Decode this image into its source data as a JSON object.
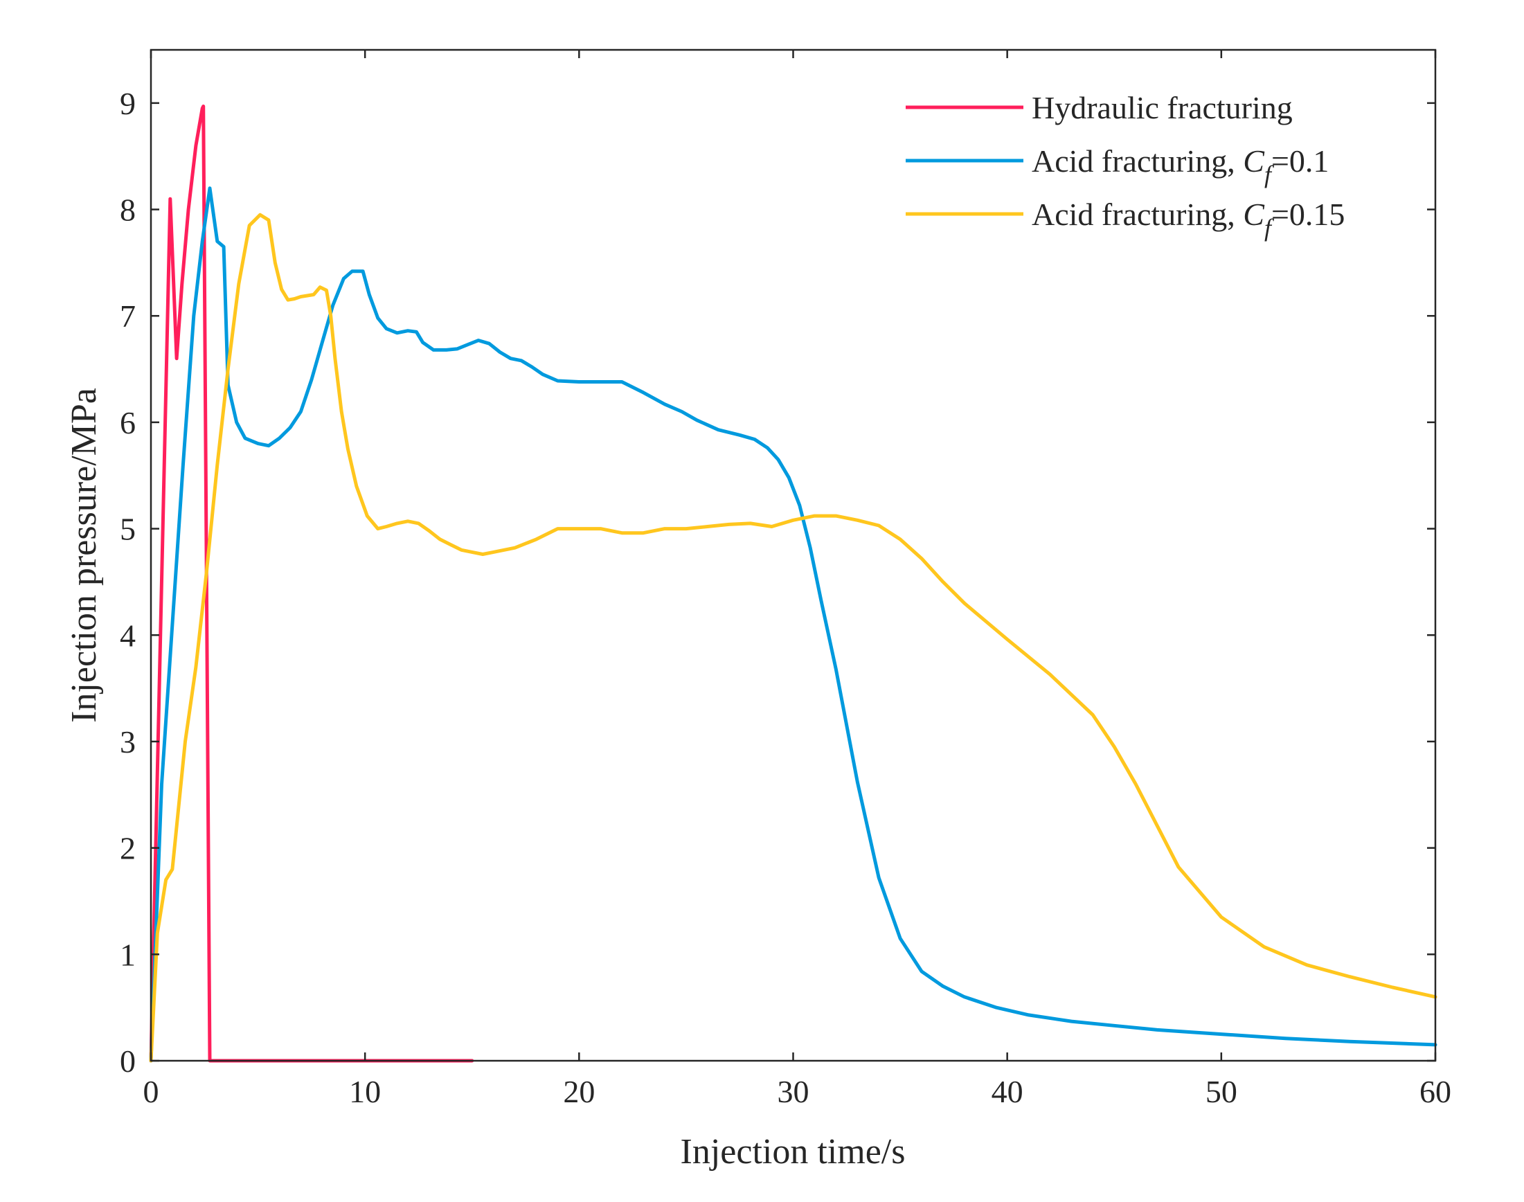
{
  "chart_data": {
    "type": "line",
    "title": "",
    "xlabel": "Injection time/s",
    "ylabel": "Injection pressure/MPa",
    "xlim": [
      0,
      60
    ],
    "ylim": [
      0,
      9.5
    ],
    "xticks": [
      0,
      10,
      20,
      30,
      40,
      50,
      60
    ],
    "yticks": [
      0,
      1,
      2,
      3,
      4,
      5,
      6,
      7,
      8,
      9
    ],
    "grid": false,
    "legend_position": "top-right",
    "series": [
      {
        "name": "Hydraulic fracturing",
        "legend": {
          "prefix": "Hydraulic fracturing",
          "italic": "",
          "sub": "",
          "suffix": ""
        },
        "color": "#ff1f5b",
        "x": [
          0,
          0.9,
          1.2,
          1.45,
          1.75,
          2.1,
          2.4,
          2.45,
          2.75,
          3.0,
          5.0,
          10.0,
          15.0
        ],
        "y": [
          0,
          8.1,
          6.6,
          7.3,
          8.0,
          8.6,
          8.95,
          8.97,
          0,
          0,
          0,
          0,
          0
        ]
      },
      {
        "name": "Acid fracturing, Cf=0.1",
        "legend": {
          "prefix": "Acid fracturing, ",
          "italic": "C",
          "sub": "f",
          "suffix": "=0.1"
        },
        "color": "#009ade",
        "x": [
          0,
          0.5,
          1,
          1.5,
          2,
          2.4,
          2.75,
          3.1,
          3.4,
          3.6,
          4.0,
          4.4,
          5.0,
          5.5,
          6.0,
          6.5,
          7.0,
          7.5,
          8.0,
          8.5,
          9.0,
          9.4,
          9.9,
          10.2,
          10.6,
          11.0,
          11.5,
          12.0,
          12.4,
          12.7,
          13.2,
          13.8,
          14.3,
          14.8,
          15.3,
          15.8,
          16.3,
          16.8,
          17.3,
          17.8,
          18.3,
          19.0,
          20.0,
          21.0,
          22.0,
          23.0,
          24.0,
          24.8,
          25.5,
          26.5,
          27.5,
          28.2,
          28.8,
          29.3,
          29.8,
          30.3,
          30.8,
          31.3,
          32.0,
          33.0,
          34.0,
          35.0,
          36.0,
          37.0,
          38.0,
          39.5,
          41.0,
          43.0,
          45.0,
          47.0,
          50.0,
          53.0,
          56.0,
          60.0
        ],
        "y": [
          0,
          2.6,
          4.1,
          5.6,
          7.0,
          7.7,
          8.2,
          7.7,
          7.65,
          6.35,
          6.0,
          5.85,
          5.8,
          5.78,
          5.85,
          5.95,
          6.1,
          6.4,
          6.75,
          7.1,
          7.35,
          7.42,
          7.42,
          7.2,
          6.98,
          6.88,
          6.84,
          6.86,
          6.85,
          6.75,
          6.68,
          6.68,
          6.69,
          6.73,
          6.77,
          6.74,
          6.66,
          6.6,
          6.58,
          6.52,
          6.45,
          6.39,
          6.38,
          6.38,
          6.38,
          6.28,
          6.17,
          6.1,
          6.02,
          5.93,
          5.88,
          5.84,
          5.76,
          5.65,
          5.48,
          5.22,
          4.82,
          4.33,
          3.68,
          2.62,
          1.72,
          1.15,
          0.84,
          0.7,
          0.6,
          0.5,
          0.43,
          0.37,
          0.33,
          0.29,
          0.25,
          0.21,
          0.18,
          0.15
        ]
      },
      {
        "name": "Acid fracturing, Cf=0.15",
        "legend": {
          "prefix": "Acid fracturing, ",
          "italic": "C",
          "sub": "f",
          "suffix": "=0.15"
        },
        "color": "#ffc61e",
        "x": [
          0,
          0.3,
          0.7,
          1.0,
          1.6,
          2.1,
          2.6,
          3.1,
          3.6,
          4.1,
          4.6,
          5.1,
          5.5,
          5.8,
          6.1,
          6.4,
          6.7,
          7.0,
          7.3,
          7.6,
          7.9,
          8.2,
          8.4,
          8.6,
          8.9,
          9.2,
          9.6,
          10.1,
          10.6,
          11.0,
          11.5,
          12.0,
          12.5,
          13.0,
          13.5,
          14.0,
          14.5,
          15.0,
          15.5,
          16.0,
          16.5,
          17.0,
          18.0,
          19.0,
          20.0,
          21.0,
          22.0,
          23.0,
          24.0,
          25.0,
          26.0,
          27.0,
          28.0,
          29.0,
          30.0,
          31.0,
          32.0,
          33.0,
          34.0,
          35.0,
          36.0,
          37.0,
          38.0,
          40.0,
          42.0,
          44.0,
          45.0,
          46.0,
          48.0,
          50.0,
          52.0,
          54.0,
          56.0,
          58.0,
          60.0
        ],
        "y": [
          0,
          1.2,
          1.7,
          1.8,
          3.0,
          3.7,
          4.6,
          5.6,
          6.5,
          7.3,
          7.85,
          7.95,
          7.9,
          7.5,
          7.25,
          7.15,
          7.16,
          7.18,
          7.19,
          7.2,
          7.27,
          7.24,
          7.0,
          6.6,
          6.1,
          5.75,
          5.4,
          5.12,
          5.0,
          5.02,
          5.05,
          5.07,
          5.05,
          4.98,
          4.9,
          4.85,
          4.8,
          4.78,
          4.76,
          4.78,
          4.8,
          4.82,
          4.9,
          5.0,
          5.0,
          5.0,
          4.96,
          4.96,
          5.0,
          5.0,
          5.02,
          5.04,
          5.05,
          5.02,
          5.08,
          5.12,
          5.12,
          5.08,
          5.03,
          4.9,
          4.72,
          4.5,
          4.3,
          3.96,
          3.63,
          3.25,
          2.95,
          2.6,
          1.82,
          1.35,
          1.07,
          0.9,
          0.79,
          0.69,
          0.6
        ]
      }
    ]
  }
}
